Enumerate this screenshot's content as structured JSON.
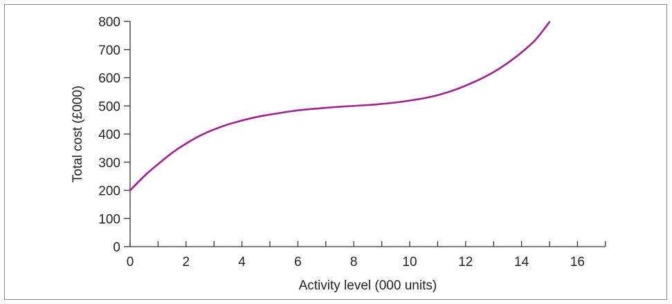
{
  "chart_data": {
    "type": "line",
    "title": "",
    "xlabel": "Activity level (000 units)",
    "ylabel": "Total cost (£000)",
    "xlim": [
      0,
      17
    ],
    "ylim": [
      0,
      800
    ],
    "x_ticks": [
      "0",
      "2",
      "4",
      "6",
      "8",
      "10",
      "12",
      "14",
      "16"
    ],
    "x_tick_values": [
      0,
      2,
      4,
      6,
      8,
      10,
      12,
      14,
      16
    ],
    "x_minor_tick_values": [
      1,
      3,
      5,
      7,
      9,
      11,
      13,
      15,
      17
    ],
    "y_ticks": [
      "0",
      "100",
      "200",
      "300",
      "400",
      "500",
      "600",
      "700",
      "800"
    ],
    "y_tick_values": [
      0,
      100,
      200,
      300,
      400,
      500,
      600,
      700,
      800
    ],
    "grid": false,
    "series": [
      {
        "color": "#a0218f",
        "x": [
          0,
          0.5,
          1,
          1.5,
          2,
          2.5,
          3,
          3.5,
          4,
          4.5,
          5,
          5.5,
          6,
          6.5,
          7,
          7.5,
          8,
          8.5,
          9,
          9.5,
          10,
          10.5,
          11,
          11.5,
          12,
          12.5,
          13,
          13.5,
          14,
          14.5,
          15
        ],
        "y": [
          200,
          250,
          293,
          333,
          366,
          394,
          416,
          434,
          448,
          460,
          469,
          477,
          484,
          489,
          493,
          497,
          500,
          503,
          507,
          512,
          519,
          527,
          538,
          553,
          572,
          594,
          620,
          652,
          690,
          735,
          798
        ]
      }
    ]
  }
}
